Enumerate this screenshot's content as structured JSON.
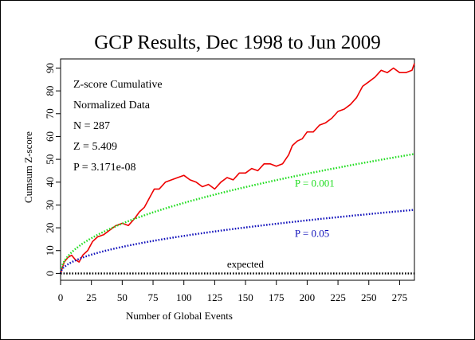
{
  "page": {
    "border_color": "#000000",
    "background": "#ffffff"
  },
  "chart_data": {
    "type": "line",
    "title": "GCP Results, Dec 1998 to Jun 2009",
    "xlabel": "Number of Global Events",
    "ylabel": "Cumsum Z-score",
    "xlim": [
      0,
      287
    ],
    "ylim": [
      -3,
      94
    ],
    "x_ticks": [
      0,
      25,
      50,
      75,
      100,
      125,
      150,
      175,
      200,
      225,
      250,
      275
    ],
    "y_ticks": [
      0,
      10,
      20,
      30,
      40,
      50,
      60,
      70,
      80,
      90
    ],
    "grid": false,
    "stats": [
      "Z-score Cumulative",
      "Normalized Data",
      "N = 287",
      "Z = 5.409",
      "P = 3.171e-08"
    ],
    "series": [
      {
        "name": "",
        "style": "solid",
        "color": "#ee0000",
        "x": [
          0,
          3,
          6,
          9,
          12,
          15,
          18,
          22,
          26,
          30,
          35,
          40,
          45,
          50,
          55,
          60,
          64,
          68,
          72,
          76,
          80,
          85,
          90,
          95,
          100,
          105,
          110,
          115,
          120,
          125,
          130,
          135,
          140,
          145,
          150,
          155,
          160,
          165,
          170,
          175,
          180,
          185,
          188,
          192,
          196,
          200,
          205,
          210,
          215,
          220,
          225,
          230,
          235,
          240,
          245,
          250,
          255,
          260,
          265,
          270,
          275,
          280,
          285,
          287
        ],
        "y": [
          0,
          5,
          7,
          8,
          6,
          5,
          8,
          10,
          14,
          16,
          17,
          19,
          21,
          22,
          21,
          24,
          27,
          29,
          33,
          37,
          37,
          40,
          41,
          42,
          43,
          41,
          40,
          38,
          39,
          37,
          40,
          42,
          41,
          44,
          44,
          46,
          45,
          48,
          48,
          47,
          48,
          52,
          56,
          58,
          59,
          62,
          62,
          65,
          66,
          68,
          71,
          72,
          74,
          77,
          82,
          84,
          86,
          89,
          88,
          90,
          88,
          88,
          89,
          92
        ]
      },
      {
        "name": "P = 0.001",
        "style": "dotted",
        "color": "#22dd22",
        "label_at": [
          190,
          38
        ],
        "formula": "y = 3.09 * sqrt(x)"
      },
      {
        "name": "P = 0.05",
        "style": "dotted",
        "color": "#1111bb",
        "label_at": [
          190,
          16
        ],
        "formula": "y = 1.645 * sqrt(x)"
      },
      {
        "name": "expected",
        "style": "dotted",
        "color": "#000000",
        "label_at": [
          135,
          2.5
        ],
        "formula": "y = 0"
      }
    ]
  }
}
